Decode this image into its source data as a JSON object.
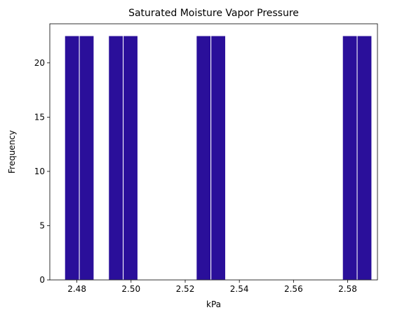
{
  "chart_data": {
    "type": "bar",
    "title": "Saturated Moisture Vapor Pressure",
    "xlabel": "kPa",
    "ylabel": "Frequency",
    "xlim": [
      2.47,
      2.591
    ],
    "ylim": [
      0,
      23.6
    ],
    "xticks": [
      2.48,
      2.5,
      2.52,
      2.54,
      2.56,
      2.58
    ],
    "xtick_labels": [
      "2.48",
      "2.50",
      "2.52",
      "2.54",
      "2.56",
      "2.58"
    ],
    "yticks": [
      0,
      5,
      10,
      15,
      20
    ],
    "ytick_labels": [
      "0",
      "5",
      "10",
      "15",
      "20"
    ],
    "bar_color": "#2a0f9a",
    "edge_color": "#ffffff",
    "grid": false,
    "legend": "none",
    "bins": [
      {
        "start": 2.4755,
        "end": 2.4809,
        "value": 22.5
      },
      {
        "start": 2.4809,
        "end": 2.4863,
        "value": 22.5
      },
      {
        "start": 2.4917,
        "end": 2.4971,
        "value": 22.5
      },
      {
        "start": 2.4971,
        "end": 2.5025,
        "value": 22.5
      },
      {
        "start": 2.5025,
        "end": 2.5079,
        "value": 0
      },
      {
        "start": 2.5079,
        "end": 2.5133,
        "value": 0
      },
      {
        "start": 2.5133,
        "end": 2.5187,
        "value": 0
      },
      {
        "start": 2.5187,
        "end": 2.5241,
        "value": 0
      },
      {
        "start": 2.5241,
        "end": 2.5295,
        "value": 22.5
      },
      {
        "start": 2.5295,
        "end": 2.5349,
        "value": 22.5
      },
      {
        "start": 2.5565,
        "end": 2.5619,
        "value": 0
      },
      {
        "start": 2.5619,
        "end": 2.5673,
        "value": 0
      },
      {
        "start": 2.5673,
        "end": 2.5727,
        "value": 0
      },
      {
        "start": 2.5727,
        "end": 2.5781,
        "value": 0
      },
      {
        "start": 2.5781,
        "end": 2.5835,
        "value": 22.5
      },
      {
        "start": 2.5835,
        "end": 2.5889,
        "value": 22.5
      }
    ]
  }
}
